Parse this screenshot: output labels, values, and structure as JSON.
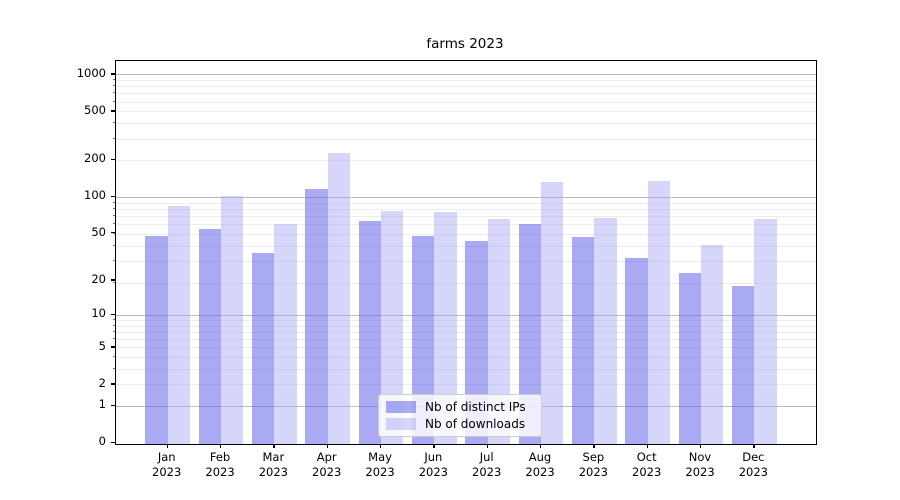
{
  "chart_data": {
    "type": "bar",
    "title": "farms 2023",
    "months": [
      "Jan",
      "Feb",
      "Mar",
      "Apr",
      "May",
      "Jun",
      "Jul",
      "Aug",
      "Sep",
      "Oct",
      "Nov",
      "Dec"
    ],
    "year": "2023",
    "categories": [
      "Jan 2023",
      "Feb 2023",
      "Mar 2023",
      "Apr 2023",
      "May 2023",
      "Jun 2023",
      "Jul 2023",
      "Aug 2023",
      "Sep 2023",
      "Oct 2023",
      "Nov 2023",
      "Dec 2023"
    ],
    "series": [
      {
        "name": "Nb of distinct IPs",
        "color": "rgba(100,100,232,0.55)",
        "values": [
          47,
          54,
          34,
          116,
          63,
          47,
          43,
          59,
          46,
          31,
          23,
          18
        ]
      },
      {
        "name": "Nb of downloads",
        "color": "rgba(165,165,245,0.45)",
        "values": [
          84,
          101,
          60,
          229,
          76,
          74,
          66,
          133,
          67,
          134,
          40,
          66
        ]
      }
    ],
    "y_ticks": [
      1000,
      500,
      200,
      100,
      50,
      20,
      10,
      5,
      2,
      1,
      0
    ],
    "y_scale": "log(value+1)",
    "y_major_gridlines": [
      1000,
      100,
      10,
      1
    ],
    "grid": true,
    "legend_position": "lower center",
    "colors": {
      "grid_minor": "#ececec",
      "grid_major": "#bbbbbb",
      "axis": "#000000",
      "background": "#ffffff"
    }
  }
}
